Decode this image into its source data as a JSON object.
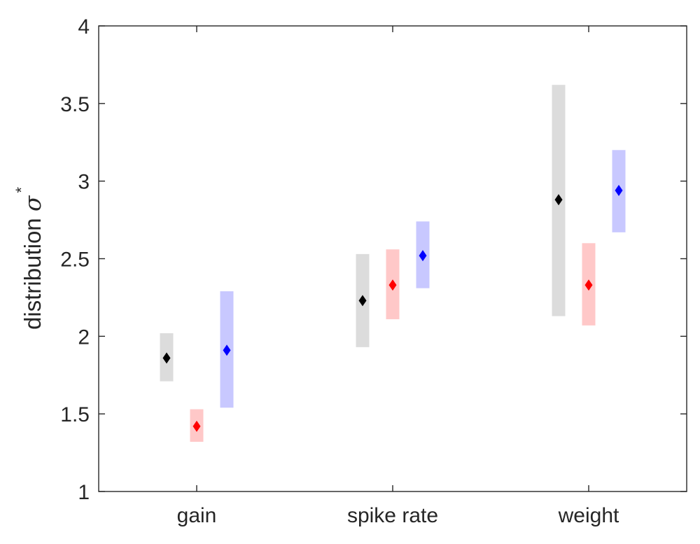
{
  "chart_data": {
    "type": "scatter",
    "title": "",
    "xlabel": "",
    "ylabel": {
      "text": "distribution ",
      "symbol": "σ",
      "superscript": "*"
    },
    "categories": [
      "gain",
      "spike rate",
      "weight"
    ],
    "ylim": [
      1,
      4
    ],
    "yticks": [
      1,
      1.5,
      2,
      2.5,
      3,
      3.5,
      4
    ],
    "ytick_labels": [
      "1",
      "1.5",
      "2",
      "2.5",
      "3",
      "3.5",
      "4"
    ],
    "grid": false,
    "legend": null,
    "series": [
      {
        "color": "#000000",
        "band_color": "#dcdcdc",
        "values": [
          1.86,
          2.23,
          2.88
        ],
        "low": [
          1.71,
          1.93,
          2.13
        ],
        "high": [
          2.02,
          2.53,
          3.62
        ]
      },
      {
        "color": "#ff0000",
        "band_color": "#ffc8c8",
        "values": [
          1.42,
          2.33,
          2.33
        ],
        "low": [
          1.32,
          2.11,
          2.07
        ],
        "high": [
          1.53,
          2.56,
          2.6
        ]
      },
      {
        "color": "#0000ff",
        "band_color": "#c8c8ff",
        "values": [
          1.91,
          2.52,
          2.94
        ],
        "low": [
          1.54,
          2.31,
          2.67
        ],
        "high": [
          2.29,
          2.74,
          3.2
        ]
      }
    ]
  }
}
